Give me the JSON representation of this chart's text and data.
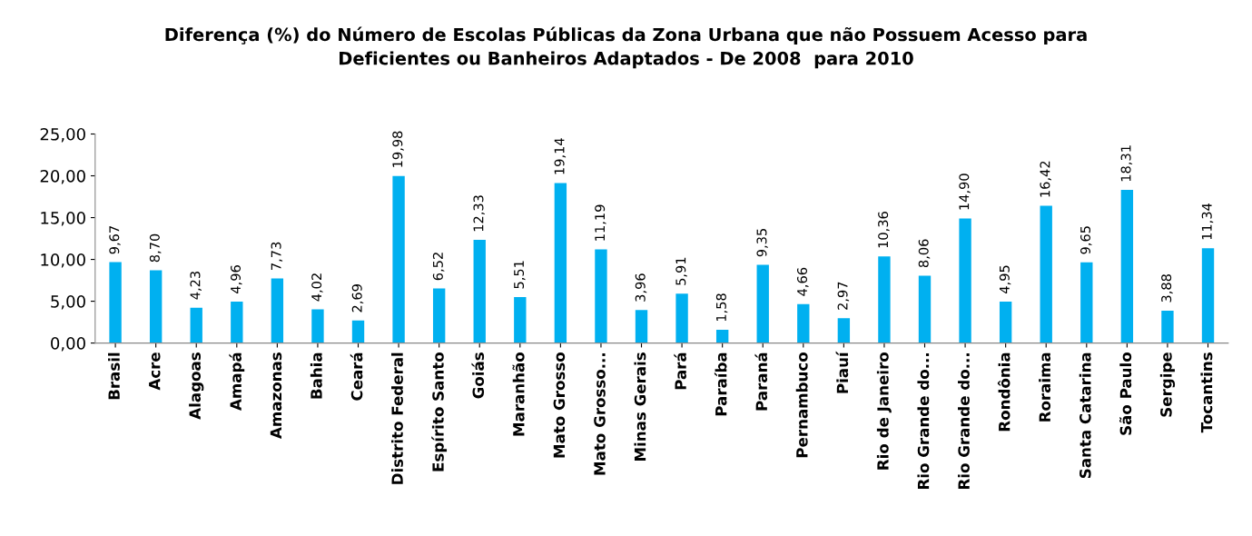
{
  "chart_data": {
    "type": "bar",
    "title": "Diferença (%) do Número de Escolas Públicas da Zona Urbana que não Possuem Acesso para\nDeficientes ou Banheiros Adaptados - De 2008  para 2010",
    "categories": [
      "Brasil",
      "Acre",
      "Alagoas",
      "Amapá",
      "Amazonas",
      "Bahia",
      "Ceará",
      "Distrito Federal",
      "Espírito Santo",
      "Goiás",
      "Maranhão",
      "Mato Grosso",
      "Mato Grosso...",
      "Minas Gerais",
      "Pará",
      "Paraíba",
      "Paraná",
      "Pernambuco",
      "Piauí",
      "Rio de Janeiro",
      "Rio Grande do...",
      "Rio Grande do...",
      "Rondônia",
      "Roraima",
      "Santa Catarina",
      "São Paulo",
      "Sergipe",
      "Tocantins"
    ],
    "values": [
      9.67,
      8.7,
      4.23,
      4.96,
      7.73,
      4.02,
      2.69,
      19.98,
      6.52,
      12.33,
      5.51,
      19.14,
      11.19,
      3.96,
      5.91,
      1.58,
      9.35,
      4.66,
      2.97,
      10.36,
      8.06,
      14.9,
      4.95,
      16.42,
      9.65,
      18.31,
      3.88,
      11.34
    ],
    "value_labels": [
      "9,67",
      "8,70",
      "4,23",
      "4,96",
      "7,73",
      "4,02",
      "2,69",
      "19,98",
      "6,52",
      "12,33",
      "5,51",
      "19,14",
      "11,19",
      "3,96",
      "5,91",
      "1,58",
      "9,35",
      "4,66",
      "2,97",
      "10,36",
      "8,06",
      "14,90",
      "4,95",
      "16,42",
      "9,65",
      "18,31",
      "3,88",
      "11,34"
    ],
    "color": "#00b0f0",
    "ylim": [
      0,
      25
    ],
    "yticks": [
      {
        "value": 0,
        "label": "0,00"
      },
      {
        "value": 5,
        "label": "5,00"
      },
      {
        "value": 10,
        "label": "10,00"
      },
      {
        "value": 15,
        "label": "15,00"
      },
      {
        "value": 20,
        "label": "20,00"
      },
      {
        "value": 25,
        "label": "25,00"
      }
    ],
    "grid": false
  }
}
